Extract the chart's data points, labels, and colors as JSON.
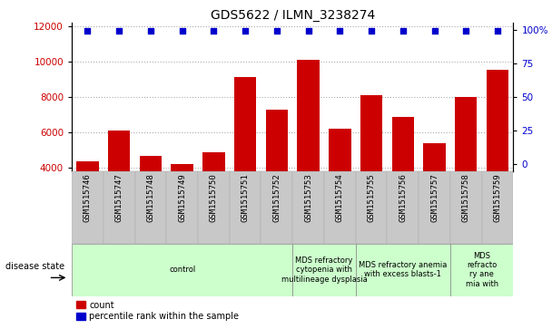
{
  "title": "GDS5622 / ILMN_3238274",
  "samples": [
    "GSM1515746",
    "GSM1515747",
    "GSM1515748",
    "GSM1515749",
    "GSM1515750",
    "GSM1515751",
    "GSM1515752",
    "GSM1515753",
    "GSM1515754",
    "GSM1515755",
    "GSM1515756",
    "GSM1515757",
    "GSM1515758",
    "GSM1515759"
  ],
  "counts": [
    4350,
    6100,
    4650,
    4200,
    4850,
    9150,
    7300,
    10100,
    6200,
    8100,
    6850,
    5400,
    8000,
    9550
  ],
  "bar_color": "#cc0000",
  "dot_color": "#0000cc",
  "ylim_left": [
    3800,
    12200
  ],
  "ylim_right": [
    -5,
    105
  ],
  "yticks_left": [
    4000,
    6000,
    8000,
    10000,
    12000
  ],
  "yticks_right": [
    0,
    25,
    50,
    75,
    100
  ],
  "disease_groups": [
    {
      "label": "control",
      "start": 0,
      "end": 7,
      "color": "#ccffcc"
    },
    {
      "label": "MDS refractory\ncytopenia with\nmultilineage dysplasia",
      "start": 7,
      "end": 9,
      "color": "#ccffcc"
    },
    {
      "label": "MDS refractory anemia\nwith excess blasts-1",
      "start": 9,
      "end": 12,
      "color": "#ccffcc"
    },
    {
      "label": "MDS\nrefracto\nry ane\nmia with",
      "start": 12,
      "end": 14,
      "color": "#ccffcc"
    }
  ],
  "disease_state_label": "disease state",
  "legend_count_label": "count",
  "legend_pct_label": "percentile rank within the sample",
  "title_fontsize": 10,
  "tick_fontsize": 7.5,
  "sample_fontsize": 6.5,
  "disease_fontsize": 6,
  "legend_fontsize": 7,
  "base_value": 3800,
  "pct_value": 98
}
